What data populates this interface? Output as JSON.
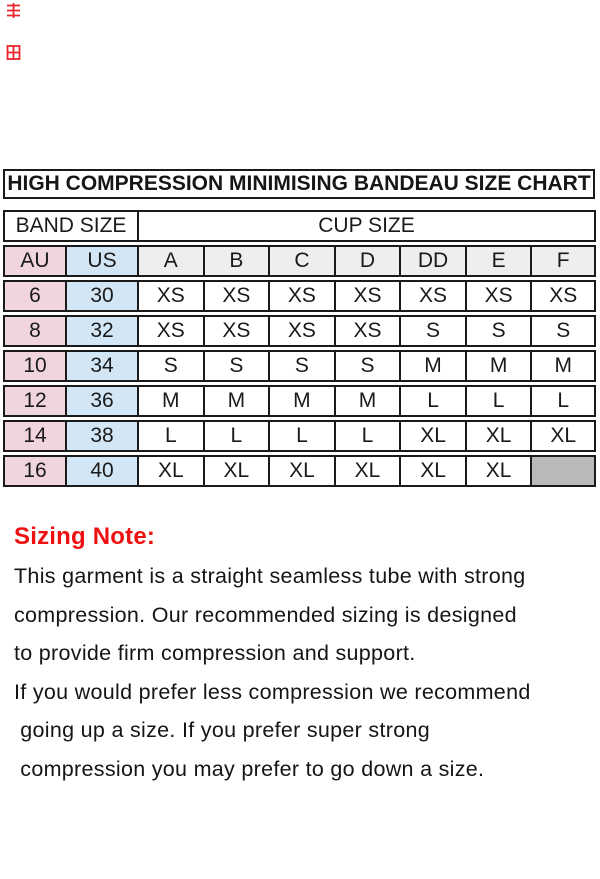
{
  "title": {
    "text": "HIGH COMPRESSION MINIMISING BANDEAU SIZE CHART"
  },
  "top_marks": {
    "color": "#e8262d",
    "count": 2
  },
  "size_chart": {
    "band_size_header": "BAND SIZE",
    "cup_size_header": "CUP SIZE",
    "band_columns": [
      "AU",
      "US"
    ],
    "cup_columns": [
      "A",
      "B",
      "C",
      "D",
      "DD",
      "E",
      "F"
    ],
    "rows": [
      {
        "au": "6",
        "us": "30",
        "cups": [
          "XS",
          "XS",
          "XS",
          "XS",
          "XS",
          "XS",
          "XS"
        ]
      },
      {
        "au": "8",
        "us": "32",
        "cups": [
          "XS",
          "XS",
          "XS",
          "XS",
          "S",
          "S",
          "S"
        ]
      },
      {
        "au": "10",
        "us": "34",
        "cups": [
          "S",
          "S",
          "S",
          "S",
          "M",
          "M",
          "M"
        ]
      },
      {
        "au": "12",
        "us": "36",
        "cups": [
          "M",
          "M",
          "M",
          "M",
          "L",
          "L",
          "L"
        ]
      },
      {
        "au": "14",
        "us": "38",
        "cups": [
          "L",
          "L",
          "L",
          "L",
          "XL",
          "XL",
          "XL"
        ]
      },
      {
        "au": "16",
        "us": "40",
        "cups": [
          "XL",
          "XL",
          "XL",
          "XL",
          "XL",
          "XL",
          null
        ]
      }
    ],
    "colors": {
      "au_column_bg": "#f0d5e1",
      "us_column_bg": "#d2e6f6",
      "cup_header_bg": "#eeeeee",
      "empty_cell_bg": "#b9b9b9",
      "border": "#1a1a1a"
    }
  },
  "sizing_note": {
    "heading": "Sizing Note:",
    "heading_color": "#ee1111",
    "lines": [
      "This garment is a straight seamless tube with strong",
      "compression. Our recommended sizing is designed",
      "to provide firm compression and support.",
      "If you would prefer less compression we recommend",
      " going up a size. If you prefer super strong",
      " compression you may prefer to go down a size."
    ]
  }
}
